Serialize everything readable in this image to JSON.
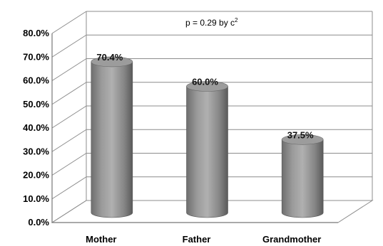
{
  "chart_data": {
    "type": "bar",
    "style": "3d-cylinder",
    "categories": [
      "Mother",
      "Father",
      "Grandmother"
    ],
    "values": [
      70.4,
      60.0,
      37.5
    ],
    "data_labels": [
      "70.4%",
      "60.0%",
      "37.5%"
    ],
    "ylim": [
      0,
      80
    ],
    "yticks": [
      "0.0%",
      "10.0%",
      "20.0%",
      "30.0%",
      "40.0%",
      "50.0%",
      "60.0%",
      "70.0%",
      "80.0%"
    ],
    "annotation": "p = 0.29 by c",
    "annotation_sup": "2",
    "grid": true,
    "bar_color": "#8a8a8a",
    "legend": "none"
  }
}
